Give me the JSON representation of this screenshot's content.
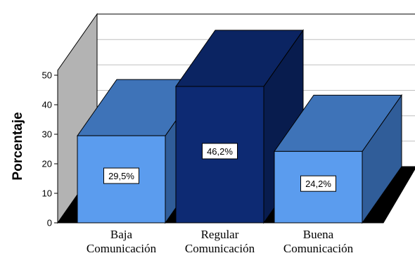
{
  "chart_data": {
    "type": "bar",
    "style": "3d",
    "categories": [
      [
        "Baja",
        "Comunicación"
      ],
      [
        "Regular",
        "Comunicación"
      ],
      [
        "Buena",
        "Comunicación"
      ]
    ],
    "values": [
      29.5,
      46.2,
      24.2
    ],
    "data_labels": [
      "29,5%",
      "46,2%",
      "24,2%"
    ],
    "ylabel": "Porcentaje",
    "yticks": [
      "0",
      "10",
      "20",
      "30",
      "40",
      "50"
    ],
    "ylim": [
      0,
      50
    ],
    "grid": true,
    "legend": "none",
    "colors": {
      "bar_light_front": "#5b9cee",
      "bar_light_top": "#3e73b8",
      "bar_light_side": "#305d99",
      "bar_dark_front": "#0d2a73",
      "bar_dark_top": "#0b2462",
      "bar_dark_side": "#081c4e",
      "left_wall": "#b3b3b3",
      "floor": "#000000",
      "grid": "#bfbfbf"
    }
  }
}
